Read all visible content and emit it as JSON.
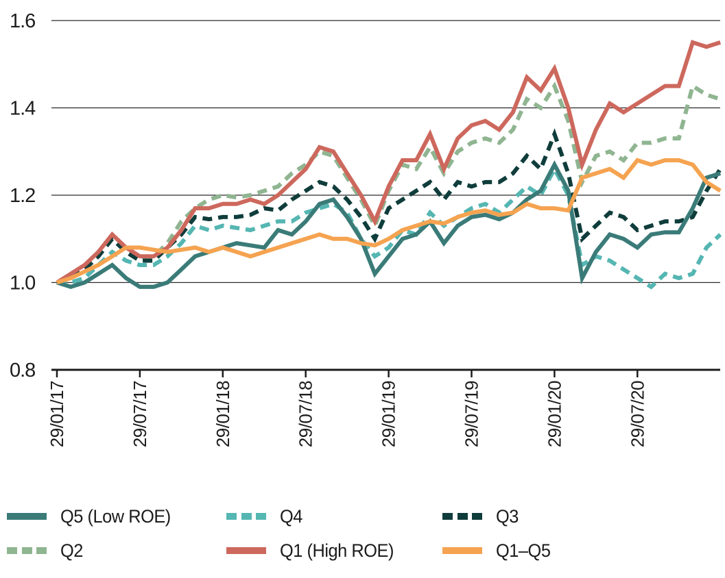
{
  "chart_data": {
    "type": "line",
    "title": "",
    "xlabel": "",
    "ylabel": "",
    "ylim": [
      0.8,
      1.6
    ],
    "y_ticks": [
      "1.6",
      "1.4",
      "1.2",
      "1.0",
      "0.8"
    ],
    "y_tick_values": [
      1.6,
      1.4,
      1.2,
      1.0,
      0.8
    ],
    "grid": "horizontal gridlines at 1.0, 1.2, 1.4, 1.6; baseline axis at 0.8",
    "legend_position": "bottom, two rows of three",
    "x_tick_labels": [
      "29/01/17",
      "29/07/17",
      "29/01/18",
      "29/07/18",
      "29/01/19",
      "29/07/19",
      "29/01/20",
      "29/07/20"
    ],
    "x_tick_indices": [
      0,
      6,
      12,
      18,
      24,
      30,
      36,
      42
    ],
    "n_points": 49,
    "x_description": "monthly observations from 29/01/17 to 29/01/21, index 0..48",
    "draw_order": [
      3,
      1,
      2,
      0,
      4,
      5
    ],
    "series": [
      {
        "name": "Q5 (Low ROE)",
        "color": "#3a7b78",
        "style": "solid",
        "values": [
          1.0,
          0.99,
          1.0,
          1.02,
          1.04,
          1.01,
          0.99,
          0.99,
          1.0,
          1.03,
          1.06,
          1.07,
          1.08,
          1.09,
          1.085,
          1.08,
          1.12,
          1.11,
          1.14,
          1.18,
          1.19,
          1.15,
          1.1,
          1.02,
          1.06,
          1.1,
          1.11,
          1.14,
          1.09,
          1.13,
          1.15,
          1.155,
          1.145,
          1.16,
          1.19,
          1.21,
          1.27,
          1.21,
          1.01,
          1.07,
          1.11,
          1.1,
          1.08,
          1.11,
          1.115,
          1.115,
          1.17,
          1.24,
          1.25
        ]
      },
      {
        "name": "Q4",
        "color": "#55b6b2",
        "style": "dashed",
        "values": [
          1.0,
          1.0,
          1.01,
          1.04,
          1.07,
          1.05,
          1.04,
          1.04,
          1.06,
          1.09,
          1.13,
          1.12,
          1.13,
          1.125,
          1.12,
          1.13,
          1.14,
          1.14,
          1.16,
          1.17,
          1.18,
          1.16,
          1.1,
          1.06,
          1.08,
          1.12,
          1.11,
          1.16,
          1.13,
          1.15,
          1.17,
          1.18,
          1.16,
          1.19,
          1.22,
          1.2,
          1.26,
          1.2,
          1.04,
          1.06,
          1.05,
          1.03,
          1.01,
          0.99,
          1.02,
          1.01,
          1.02,
          1.08,
          1.11
        ]
      },
      {
        "name": "Q3",
        "color": "#0f3d3b",
        "style": "dashed",
        "values": [
          1.0,
          1.01,
          1.03,
          1.06,
          1.1,
          1.07,
          1.05,
          1.05,
          1.08,
          1.11,
          1.15,
          1.145,
          1.15,
          1.15,
          1.155,
          1.17,
          1.165,
          1.19,
          1.21,
          1.23,
          1.22,
          1.19,
          1.15,
          1.1,
          1.17,
          1.19,
          1.21,
          1.23,
          1.19,
          1.23,
          1.22,
          1.23,
          1.23,
          1.25,
          1.29,
          1.26,
          1.34,
          1.25,
          1.1,
          1.13,
          1.16,
          1.15,
          1.12,
          1.13,
          1.14,
          1.14,
          1.15,
          1.21,
          1.26
        ]
      },
      {
        "name": "Q2",
        "color": "#8fb591",
        "style": "dashed",
        "values": [
          1.0,
          1.01,
          1.03,
          1.06,
          1.1,
          1.07,
          1.05,
          1.06,
          1.09,
          1.14,
          1.17,
          1.19,
          1.2,
          1.195,
          1.2,
          1.21,
          1.22,
          1.25,
          1.27,
          1.3,
          1.29,
          1.24,
          1.19,
          1.13,
          1.21,
          1.27,
          1.26,
          1.31,
          1.25,
          1.3,
          1.32,
          1.33,
          1.32,
          1.35,
          1.42,
          1.4,
          1.45,
          1.37,
          1.23,
          1.29,
          1.3,
          1.28,
          1.32,
          1.32,
          1.33,
          1.33,
          1.45,
          1.43,
          1.42
        ]
      },
      {
        "name": "Q1 (High ROE)",
        "color": "#cd685d",
        "style": "solid",
        "values": [
          1.0,
          1.02,
          1.04,
          1.07,
          1.11,
          1.08,
          1.06,
          1.06,
          1.08,
          1.12,
          1.17,
          1.17,
          1.18,
          1.18,
          1.19,
          1.18,
          1.2,
          1.23,
          1.26,
          1.31,
          1.3,
          1.25,
          1.2,
          1.14,
          1.22,
          1.28,
          1.28,
          1.34,
          1.26,
          1.33,
          1.36,
          1.37,
          1.35,
          1.39,
          1.47,
          1.44,
          1.49,
          1.4,
          1.27,
          1.35,
          1.41,
          1.39,
          1.41,
          1.43,
          1.45,
          1.45,
          1.55,
          1.54,
          1.55
        ]
      },
      {
        "name": "Q1–Q5",
        "color": "#f5a350",
        "style": "solid",
        "values": [
          1.0,
          1.01,
          1.025,
          1.04,
          1.06,
          1.08,
          1.08,
          1.075,
          1.07,
          1.075,
          1.08,
          1.07,
          1.08,
          1.07,
          1.06,
          1.07,
          1.08,
          1.09,
          1.1,
          1.11,
          1.1,
          1.1,
          1.09,
          1.085,
          1.1,
          1.12,
          1.13,
          1.14,
          1.135,
          1.15,
          1.16,
          1.165,
          1.155,
          1.16,
          1.18,
          1.17,
          1.17,
          1.165,
          1.24,
          1.25,
          1.26,
          1.24,
          1.28,
          1.27,
          1.28,
          1.28,
          1.27,
          1.23,
          1.21
        ]
      }
    ],
    "axis_color": "#1c1c1c",
    "gridline_color": "#2a2a2a",
    "background_color": "#ffffff"
  },
  "layout_text": {
    "note": ""
  }
}
